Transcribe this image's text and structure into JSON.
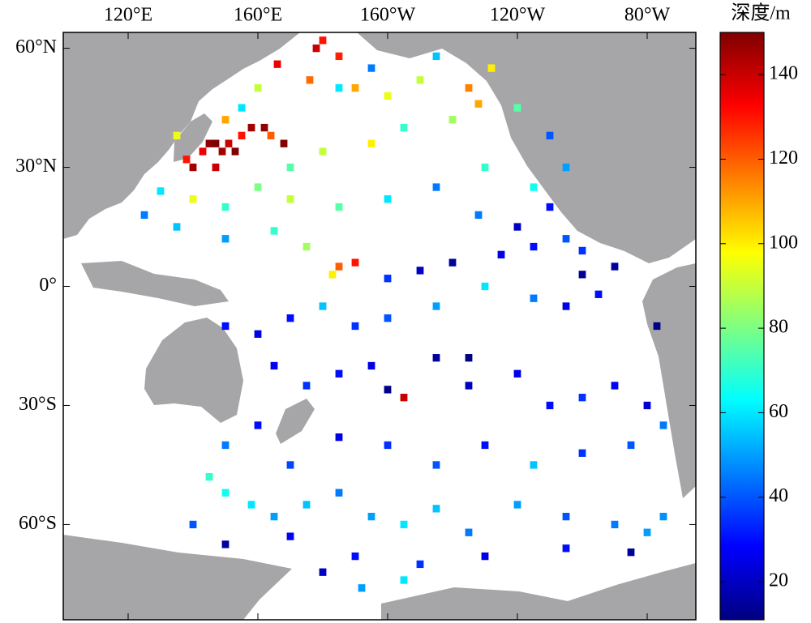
{
  "chart_data": {
    "type": "gridded-map",
    "colorbar_label": "深度/m",
    "colormap": "jet",
    "clim": [
      11,
      150
    ],
    "colorbar_ticks": [
      20,
      40,
      60,
      80,
      100,
      120,
      140
    ],
    "xlim": [
      100,
      295
    ],
    "ylim": [
      -84,
      64
    ],
    "xticks": [
      {
        "value": 120,
        "label": "120°E"
      },
      {
        "value": 160,
        "label": "160°E"
      },
      {
        "value": 200,
        "label": "160°W"
      },
      {
        "value": 240,
        "label": "120°W"
      },
      {
        "value": 280,
        "label": "80°W"
      }
    ],
    "yticks": [
      {
        "value": 60,
        "label": "60°N"
      },
      {
        "value": 30,
        "label": "30°N"
      },
      {
        "value": 0,
        "label": "0°"
      },
      {
        "value": -30,
        "label": "30°S"
      },
      {
        "value": -60,
        "label": "60°S"
      }
    ],
    "lon": [
      145,
      147,
      149,
      151,
      153,
      143,
      155,
      158,
      162,
      164,
      168,
      140,
      138,
      147,
      166,
      178,
      180,
      185,
      176,
      190,
      200,
      210,
      225,
      228,
      232,
      220,
      205,
      195,
      180,
      170,
      160,
      150,
      140,
      130,
      125,
      135,
      150,
      165,
      175,
      185,
      190,
      183,
      200,
      210,
      220,
      235,
      245,
      255,
      260,
      270,
      265,
      255,
      245,
      230,
      215,
      200,
      190,
      180,
      170,
      160,
      150,
      165,
      175,
      185,
      195,
      205,
      215,
      225,
      240,
      250,
      260,
      270,
      280,
      285,
      275,
      260,
      245,
      230,
      215,
      200,
      185,
      170,
      160,
      150,
      145,
      150,
      158,
      165,
      175,
      185,
      195,
      205,
      215,
      225,
      240,
      255,
      270,
      280,
      285,
      275,
      255,
      230,
      210,
      190,
      180,
      170,
      192,
      205,
      150,
      140,
      200,
      225,
      283,
      260,
      185,
      195,
      215,
      240,
      250,
      255,
      245,
      230,
      215,
      200,
      185,
      170,
      155,
      160,
      150,
      135,
      240,
      250,
      228
    ],
    "lat": [
      36,
      36,
      34,
      36,
      34,
      34,
      38,
      40,
      40,
      38,
      36,
      30,
      32,
      30,
      56,
      60,
      62,
      58,
      52,
      50,
      48,
      52,
      50,
      46,
      55,
      42,
      40,
      36,
      34,
      30,
      25,
      20,
      22,
      24,
      18,
      15,
      12,
      14,
      10,
      5,
      6,
      3,
      2,
      4,
      6,
      8,
      10,
      12,
      9,
      5,
      -2,
      -5,
      -3,
      0,
      -5,
      -8,
      -10,
      -5,
      -8,
      -12,
      -10,
      -20,
      -25,
      -22,
      -20,
      -28,
      -18,
      -25,
      -22,
      -30,
      -28,
      -25,
      -30,
      -35,
      -40,
      -42,
      -45,
      -40,
      -45,
      -40,
      -38,
      -45,
      -35,
      -40,
      -48,
      -52,
      -55,
      -58,
      -55,
      -52,
      -58,
      -60,
      -56,
      -62,
      -55,
      -58,
      -60,
      -62,
      -58,
      -67,
      -66,
      -68,
      -70,
      -68,
      -72,
      -63,
      -76,
      -74,
      -65,
      -60,
      -26,
      -18,
      -10,
      3,
      50,
      55,
      58,
      45,
      38,
      30,
      25,
      30,
      25,
      22,
      20,
      22,
      45,
      50,
      42,
      38,
      15,
      20,
      18
    ],
    "depth": [
      148,
      150,
      145,
      140,
      150,
      135,
      130,
      145,
      148,
      120,
      150,
      145,
      130,
      140,
      135,
      140,
      130,
      128,
      118,
      110,
      95,
      90,
      115,
      110,
      100,
      85,
      70,
      100,
      90,
      75,
      80,
      70,
      95,
      60,
      45,
      55,
      50,
      70,
      85,
      120,
      130,
      100,
      35,
      20,
      15,
      25,
      30,
      40,
      35,
      15,
      30,
      25,
      45,
      60,
      50,
      40,
      35,
      55,
      30,
      25,
      30,
      28,
      35,
      30,
      25,
      140,
      15,
      20,
      25,
      30,
      35,
      28,
      22,
      45,
      40,
      35,
      55,
      30,
      40,
      35,
      25,
      38,
      30,
      45,
      70,
      65,
      60,
      50,
      55,
      45,
      50,
      60,
      55,
      45,
      50,
      40,
      45,
      50,
      48,
      15,
      30,
      25,
      35,
      30,
      20,
      28,
      50,
      60,
      15,
      40,
      12,
      10,
      12,
      14,
      60,
      45,
      55,
      75,
      40,
      50,
      65,
      70,
      45,
      60,
      75,
      90,
      60,
      90,
      110,
      95,
      20,
      30,
      45
    ]
  }
}
